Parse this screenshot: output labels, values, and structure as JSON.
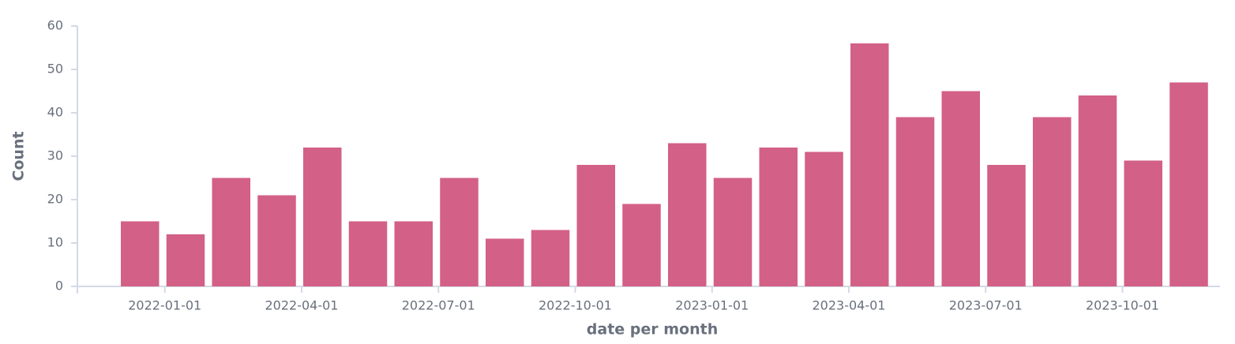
{
  "chart_data": {
    "type": "bar",
    "ylabel": "Count",
    "xlabel": "date per month",
    "categories": [
      null,
      "2022-01-01",
      null,
      null,
      "2022-04-01",
      null,
      null,
      "2022-07-01",
      null,
      null,
      "2022-10-01",
      null,
      null,
      "2023-01-01",
      null,
      null,
      "2023-04-01",
      null,
      null,
      "2023-07-01",
      null,
      null,
      "2023-10-01",
      null
    ],
    "values": [
      15,
      12,
      25,
      21,
      32,
      15,
      15,
      25,
      11,
      13,
      28,
      19,
      33,
      25,
      32,
      31,
      56,
      39,
      45,
      28,
      39,
      44,
      29,
      47
    ],
    "color": "#d36086",
    "ylim": [
      0,
      60
    ],
    "yticks": [
      0,
      10,
      20,
      30,
      40,
      50,
      60
    ],
    "grid": false
  }
}
